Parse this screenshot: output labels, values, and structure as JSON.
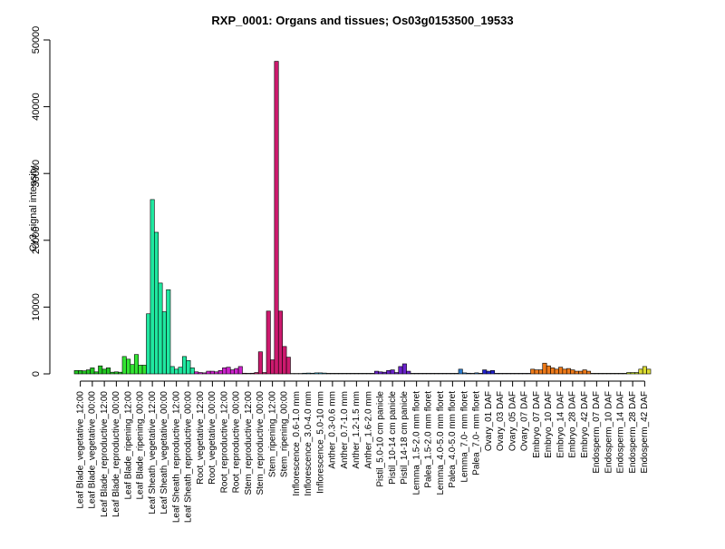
{
  "chart_data": {
    "type": "bar",
    "title": "RXP_0001: Organs and tissues; Os03g0153500_19533",
    "xlabel": "",
    "ylabel": "Cy3 signal intensity",
    "ylim": [
      0,
      50000
    ],
    "yticks": [
      0,
      10000,
      20000,
      30000,
      40000,
      50000
    ],
    "grid": false,
    "legend": "none",
    "categories": [
      "Leaf Blade_vegetative_12:00",
      "Leaf Blade_vegetative_00:00",
      "Leaf Blade_reproductive_12:00",
      "Leaf Blade_reproductive_00:00",
      "Leaf Blade_ripening_12:00",
      "Leaf Blade_ripening_00:00",
      "Leaf Sheath_vegetative_12:00",
      "Leaf Sheath_vegetative_00:00",
      "Leaf Sheath_reproductive_12:00",
      "Leaf Sheath_reproductive_00:00",
      "Root_vegetative_12:00",
      "Root_vegetative_00:00",
      "Root_reproductive_12:00",
      "Root_reproductive_00:00",
      "Stem_reproductive_12:00",
      "Stem_reproductive_00:00",
      "Stem_ripening_12:00",
      "Stem_ripening_00:00",
      "Inflorescence_0.6-1.0 mm",
      "Inflorescence_3.0-4.0 mm",
      "Inflorescence_5.0-10 mm",
      "Anther_0.3-0.6 mm",
      "Anther_0.7-1.0 mm",
      "Anther_1.2-1.5 mm",
      "Anther_1.6-2.0 mm",
      "Pistil_5.0-10 cm panicle",
      "Pistil_10-14 cm panicle",
      "Pistil_14-18 cm panicle",
      "Lemma_1.5-2.0 mm floret",
      "Palea_1.5-2.0 mm floret",
      "Lemma_4.0-5.0 mm floret",
      "Palea_4.0-5.0 mm floret",
      "Lemma_7.0- mm floret",
      "Palea_7.0- mm floret",
      "Ovary_01 DAF",
      "Ovary_03 DAF",
      "Ovary_05 DAF",
      "Ovary_07 DAF",
      "Embryo_07 DAF",
      "Embryo_10 DAF",
      "Embryo_14 DAF",
      "Embryo_28 DAF",
      "Embryo_42 DAF",
      "Endosperm_07 DAF",
      "Endosperm_10 DAF",
      "Endosperm_14 DAF",
      "Endosperm_28 DAF",
      "Endosperm_42 DAF"
    ],
    "groups": [
      {
        "color": "#22c522",
        "values": [
          500,
          500,
          450
        ]
      },
      {
        "color": "#22c522",
        "values": [
          600,
          900,
          300
        ]
      },
      {
        "color": "#22c522",
        "values": [
          1200,
          700,
          900
        ]
      },
      {
        "color": "#22c522",
        "values": [
          250,
          300,
          250
        ]
      },
      {
        "color": "#33e533",
        "values": [
          2600,
          2200,
          1400
        ]
      },
      {
        "color": "#33e533",
        "values": [
          2900,
          1300,
          1300
        ]
      },
      {
        "color": "#20e8a0",
        "values": [
          9000,
          26100,
          21200
        ]
      },
      {
        "color": "#20e8a0",
        "values": [
          13600,
          9300,
          12600
        ]
      },
      {
        "color": "#20e8a0",
        "values": [
          1100,
          700,
          1000
        ]
      },
      {
        "color": "#20e8a0",
        "values": [
          2600,
          2000,
          900
        ]
      },
      {
        "color": "#cc22cc",
        "values": [
          300,
          200,
          150
        ]
      },
      {
        "color": "#cc22cc",
        "values": [
          400,
          400,
          300
        ]
      },
      {
        "color": "#cc22cc",
        "values": [
          500,
          900,
          1000
        ]
      },
      {
        "color": "#cc22cc",
        "values": [
          600,
          800,
          1100
        ]
      },
      {
        "color": "#cc1a6e",
        "values": [
          100,
          80,
          100
        ]
      },
      {
        "color": "#cc1a6e",
        "values": [
          200,
          3300,
          200
        ]
      },
      {
        "color": "#cc1a6e",
        "values": [
          9400,
          2100,
          46800
        ]
      },
      {
        "color": "#cc1a6e",
        "values": [
          9400,
          4100,
          2500
        ]
      },
      {
        "color": "#2aa8cc",
        "values": [
          60,
          60,
          60
        ]
      },
      {
        "color": "#2aa8cc",
        "values": [
          100,
          120,
          100
        ]
      },
      {
        "color": "#2aa8cc",
        "values": [
          150,
          150,
          120
        ]
      },
      {
        "color": "#2aa8cc",
        "values": [
          80,
          80,
          80
        ]
      },
      {
        "color": "#2aa8cc",
        "values": [
          80,
          80,
          80
        ]
      },
      {
        "color": "#2aa8cc",
        "values": [
          80,
          80,
          80
        ]
      },
      {
        "color": "#2aa8cc",
        "values": [
          80,
          80,
          80
        ]
      },
      {
        "color": "#6a22cc",
        "values": [
          400,
          300,
          250
        ]
      },
      {
        "color": "#6a22cc",
        "values": [
          500,
          600,
          200
        ]
      },
      {
        "color": "#6a22cc",
        "values": [
          1100,
          1500,
          400
        ]
      },
      {
        "color": "#2a7acc",
        "values": [
          80,
          80,
          80
        ]
      },
      {
        "color": "#2a7acc",
        "values": [
          80,
          80,
          80
        ]
      },
      {
        "color": "#2a7acc",
        "values": [
          80,
          80,
          80
        ]
      },
      {
        "color": "#2a7acc",
        "values": [
          80,
          80,
          80
        ]
      },
      {
        "color": "#2a7acc",
        "values": [
          700,
          150,
          100
        ]
      },
      {
        "color": "#2a7acc",
        "values": [
          80,
          150,
          80
        ]
      },
      {
        "color": "#2222cc",
        "values": [
          600,
          400,
          500
        ]
      },
      {
        "color": "#2222cc",
        "values": [
          80,
          80,
          80
        ]
      },
      {
        "color": "#2222cc",
        "values": [
          80,
          80,
          80
        ]
      },
      {
        "color": "#2222cc",
        "values": [
          80,
          80,
          80
        ]
      },
      {
        "color": "#ee7a1a",
        "values": [
          700,
          600,
          600
        ]
      },
      {
        "color": "#ee7a1a",
        "values": [
          1600,
          1200,
          900
        ]
      },
      {
        "color": "#ee7a1a",
        "values": [
          700,
          1000,
          700
        ]
      },
      {
        "color": "#ee7a1a",
        "values": [
          800,
          600,
          400
        ]
      },
      {
        "color": "#ee7a1a",
        "values": [
          400,
          600,
          400
        ]
      },
      {
        "color": "#bbdd22",
        "values": [
          80,
          80,
          80
        ]
      },
      {
        "color": "#bbdd22",
        "values": [
          80,
          80,
          80
        ]
      },
      {
        "color": "#bbdd22",
        "values": [
          80,
          80,
          80
        ]
      },
      {
        "color": "#bbdd22",
        "values": [
          200,
          200,
          200
        ]
      },
      {
        "color": "#dddd33",
        "values": [
          700,
          1100,
          700
        ]
      }
    ]
  }
}
